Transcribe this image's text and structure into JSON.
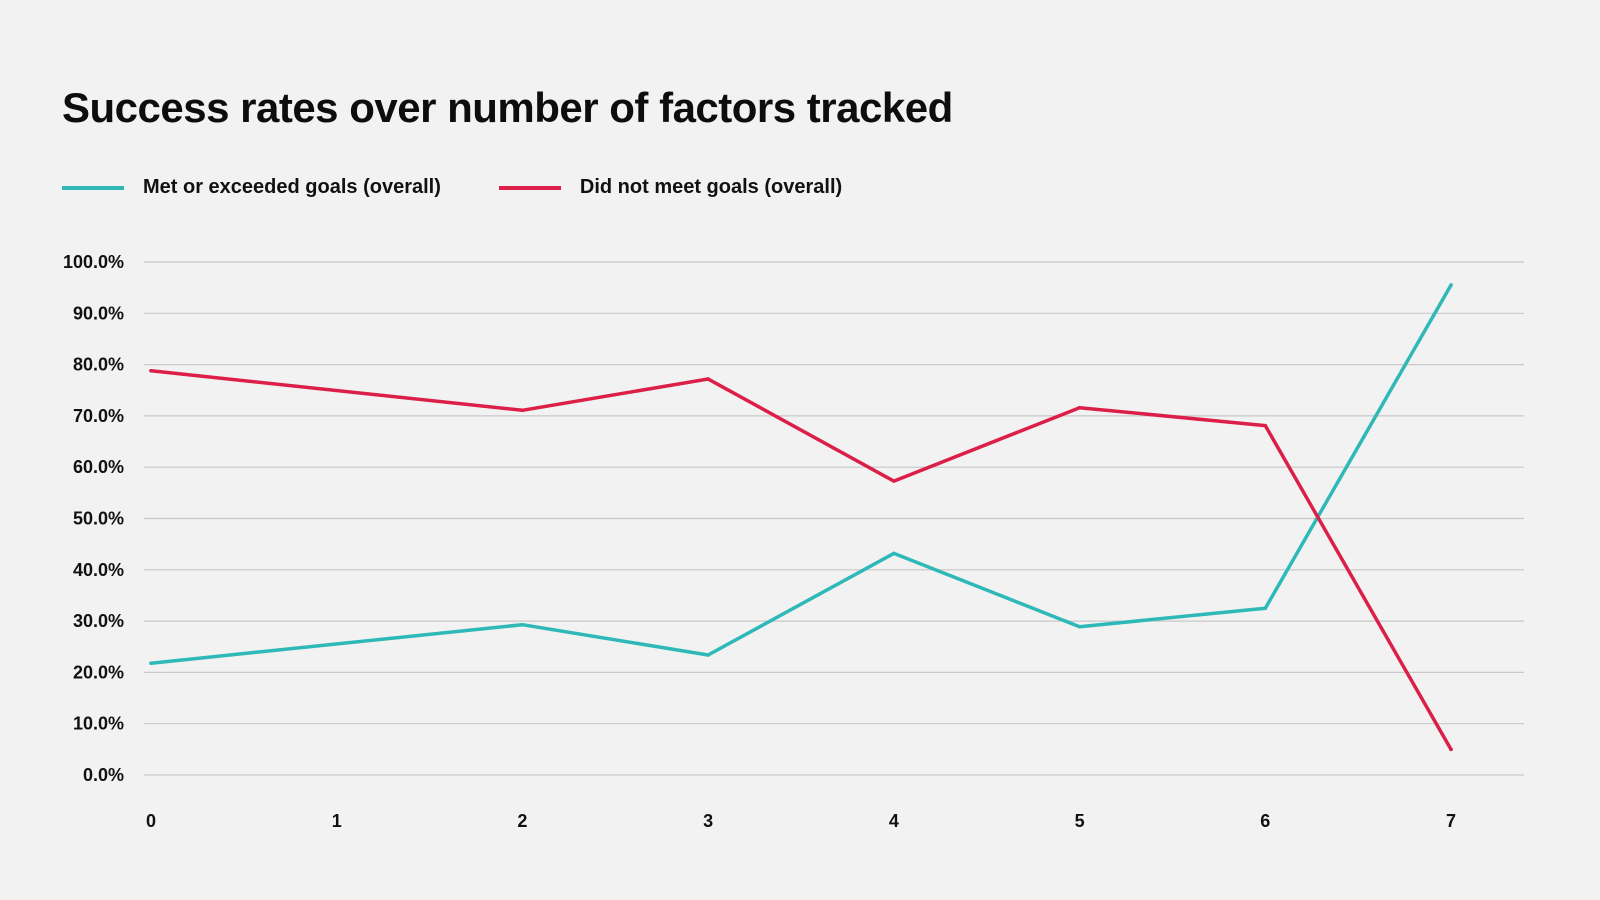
{
  "chart_data": {
    "type": "line",
    "title": "Success rates over number of factors tracked",
    "xlabel": "",
    "ylabel": "",
    "x": [
      0,
      1,
      2,
      3,
      4,
      5,
      6,
      7
    ],
    "x_tick_labels": [
      "0",
      "1",
      "2",
      "3",
      "4",
      "5",
      "6",
      "7"
    ],
    "ylim": [
      0,
      100
    ],
    "y_ticks": [
      0,
      10,
      20,
      30,
      40,
      50,
      60,
      70,
      80,
      90,
      100
    ],
    "y_tick_labels": [
      "0.0%",
      "10.0%",
      "20.0%",
      "30.0%",
      "40.0%",
      "50.0%",
      "60.0%",
      "70.0%",
      "80.0%",
      "90.0%",
      "100.0%"
    ],
    "grid": true,
    "legend_position": "top-left",
    "series": [
      {
        "name": "Met or exceeded goals (overall)",
        "color": "#2fb8b8",
        "x": [
          0,
          2,
          3,
          4,
          5,
          6,
          7
        ],
        "values": [
          21.8,
          29.3,
          23.4,
          43.2,
          28.9,
          32.5,
          95.5
        ]
      },
      {
        "name": "Did not meet goals (overall)",
        "color": "#dc1f48",
        "x": [
          0,
          2,
          3,
          4,
          5,
          6,
          7
        ],
        "values": [
          78.8,
          71.1,
          77.2,
          57.3,
          71.6,
          68.1,
          5.0
        ]
      }
    ]
  }
}
